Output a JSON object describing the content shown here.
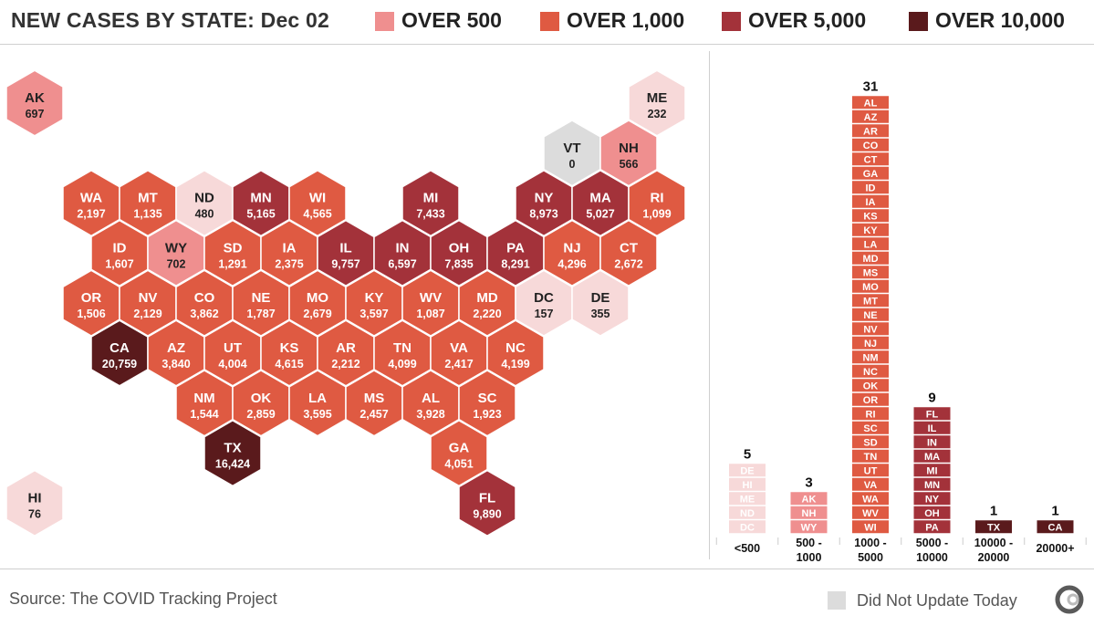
{
  "title": "NEW CASES BY STATE: Dec 02",
  "legend": [
    {
      "label": "OVER 500",
      "color": "#ef8f8f"
    },
    {
      "label": "OVER 1,000",
      "color": "#df5a42"
    },
    {
      "label": "OVER 5,000",
      "color": "#a3323a"
    },
    {
      "label": "OVER 10,000",
      "color": "#5a1a1c"
    }
  ],
  "colors": {
    "under_500": "#f7d9d9",
    "over_500": "#ef8f8f",
    "over_1000": "#df5a42",
    "over_5000": "#a3323a",
    "over_10000": "#5a1a1c",
    "did_not_update": "#dcdcdc"
  },
  "footer": {
    "source": "Source: The COVID Tracking Project",
    "did_not_update": "Did Not Update Today",
    "logo_icon": "covid-tracking-project-logo-icon"
  },
  "chart_data": [
    {
      "type": "hex-tile-map",
      "states": [
        {
          "abbr": "AK",
          "value": "697",
          "row": 0,
          "col": 0
        },
        {
          "abbr": "ME",
          "value": "232",
          "row": 0,
          "col": 11
        },
        {
          "abbr": "VT",
          "value": "0",
          "row": 1,
          "col": 9,
          "did_not_update": true
        },
        {
          "abbr": "NH",
          "value": "566",
          "row": 1,
          "col": 10
        },
        {
          "abbr": "WA",
          "value": "2,197",
          "row": 2,
          "col": 1
        },
        {
          "abbr": "MT",
          "value": "1,135",
          "row": 2,
          "col": 2
        },
        {
          "abbr": "ND",
          "value": "480",
          "row": 2,
          "col": 3
        },
        {
          "abbr": "MN",
          "value": "5,165",
          "row": 2,
          "col": 4
        },
        {
          "abbr": "WI",
          "value": "4,565",
          "row": 2,
          "col": 5
        },
        {
          "abbr": "MI",
          "value": "7,433",
          "row": 2,
          "col": 7
        },
        {
          "abbr": "NY",
          "value": "8,973",
          "row": 2,
          "col": 9
        },
        {
          "abbr": "MA",
          "value": "5,027",
          "row": 2,
          "col": 10
        },
        {
          "abbr": "RI",
          "value": "1,099",
          "row": 2,
          "col": 11
        },
        {
          "abbr": "ID",
          "value": "1,607",
          "row": 3,
          "col": 1
        },
        {
          "abbr": "WY",
          "value": "702",
          "row": 3,
          "col": 2
        },
        {
          "abbr": "SD",
          "value": "1,291",
          "row": 3,
          "col": 3
        },
        {
          "abbr": "IA",
          "value": "2,375",
          "row": 3,
          "col": 4
        },
        {
          "abbr": "IL",
          "value": "9,757",
          "row": 3,
          "col": 5
        },
        {
          "abbr": "IN",
          "value": "6,597",
          "row": 3,
          "col": 6
        },
        {
          "abbr": "OH",
          "value": "7,835",
          "row": 3,
          "col": 7
        },
        {
          "abbr": "PA",
          "value": "8,291",
          "row": 3,
          "col": 8
        },
        {
          "abbr": "NJ",
          "value": "4,296",
          "row": 3,
          "col": 9
        },
        {
          "abbr": "CT",
          "value": "2,672",
          "row": 3,
          "col": 10
        },
        {
          "abbr": "OR",
          "value": "1,506",
          "row": 4,
          "col": 1
        },
        {
          "abbr": "NV",
          "value": "2,129",
          "row": 4,
          "col": 2
        },
        {
          "abbr": "CO",
          "value": "3,862",
          "row": 4,
          "col": 3
        },
        {
          "abbr": "NE",
          "value": "1,787",
          "row": 4,
          "col": 4
        },
        {
          "abbr": "MO",
          "value": "2,679",
          "row": 4,
          "col": 5
        },
        {
          "abbr": "KY",
          "value": "3,597",
          "row": 4,
          "col": 6
        },
        {
          "abbr": "WV",
          "value": "1,087",
          "row": 4,
          "col": 7
        },
        {
          "abbr": "MD",
          "value": "2,220",
          "row": 4,
          "col": 8
        },
        {
          "abbr": "DC",
          "value": "157",
          "row": 4,
          "col": 9
        },
        {
          "abbr": "DE",
          "value": "355",
          "row": 4,
          "col": 10
        },
        {
          "abbr": "CA",
          "value": "20,759",
          "row": 5,
          "col": 1
        },
        {
          "abbr": "AZ",
          "value": "3,840",
          "row": 5,
          "col": 2
        },
        {
          "abbr": "UT",
          "value": "4,004",
          "row": 5,
          "col": 3
        },
        {
          "abbr": "KS",
          "value": "4,615",
          "row": 5,
          "col": 4
        },
        {
          "abbr": "AR",
          "value": "2,212",
          "row": 5,
          "col": 5
        },
        {
          "abbr": "TN",
          "value": "4,099",
          "row": 5,
          "col": 6
        },
        {
          "abbr": "VA",
          "value": "2,417",
          "row": 5,
          "col": 7
        },
        {
          "abbr": "NC",
          "value": "4,199",
          "row": 5,
          "col": 8
        },
        {
          "abbr": "NM",
          "value": "1,544",
          "row": 6,
          "col": 3
        },
        {
          "abbr": "OK",
          "value": "2,859",
          "row": 6,
          "col": 4
        },
        {
          "abbr": "LA",
          "value": "3,595",
          "row": 6,
          "col": 5
        },
        {
          "abbr": "MS",
          "value": "2,457",
          "row": 6,
          "col": 6
        },
        {
          "abbr": "AL",
          "value": "3,928",
          "row": 6,
          "col": 7
        },
        {
          "abbr": "SC",
          "value": "1,923",
          "row": 6,
          "col": 8
        },
        {
          "abbr": "TX",
          "value": "16,424",
          "row": 7,
          "col": 3
        },
        {
          "abbr": "GA",
          "value": "4,051",
          "row": 7,
          "col": 7
        },
        {
          "abbr": "FL",
          "value": "9,890",
          "row": 8,
          "col": 8
        },
        {
          "abbr": "HI",
          "value": "76",
          "row": 8,
          "col": 0
        }
      ]
    },
    {
      "type": "bar",
      "categories": [
        "<500",
        "500 - 1000",
        "1000 - 5000",
        "5000 - 10000",
        "10000 - 20000",
        "20000+"
      ],
      "values": [
        5,
        3,
        31,
        9,
        1,
        1
      ],
      "bins": [
        "under_500",
        "over_500",
        "over_1000",
        "over_5000",
        "over_10000",
        "over_10000"
      ],
      "members": [
        [
          "DE",
          "HI",
          "ME",
          "ND",
          "DC"
        ],
        [
          "AK",
          "NH",
          "WY"
        ],
        [
          "AL",
          "AZ",
          "AR",
          "CO",
          "CT",
          "GA",
          "ID",
          "IA",
          "KS",
          "KY",
          "LA",
          "MD",
          "MS",
          "MO",
          "MT",
          "NE",
          "NV",
          "NJ",
          "NM",
          "NC",
          "OK",
          "OR",
          "RI",
          "SC",
          "SD",
          "TN",
          "UT",
          "VA",
          "WA",
          "WV",
          "WI"
        ],
        [
          "FL",
          "IL",
          "IN",
          "MA",
          "MI",
          "MN",
          "NY",
          "OH",
          "PA"
        ],
        [
          "TX"
        ],
        [
          "CA"
        ]
      ]
    }
  ]
}
